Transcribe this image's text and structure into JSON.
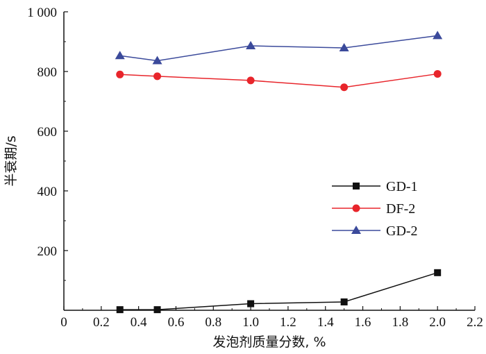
{
  "chart_data": {
    "type": "line",
    "title": "",
    "xlabel": "发泡剂质量分数, %",
    "ylabel": "半衰期/s",
    "xlim": [
      0,
      2.2
    ],
    "ylim": [
      0,
      1000
    ],
    "x_ticks": [
      "0",
      "0.2",
      "0.4",
      "0.6",
      "0.8",
      "1.0",
      "1.2",
      "1.4",
      "1.6",
      "1.8",
      "2.0",
      "2.2"
    ],
    "y_ticks": [
      "200",
      "400",
      "600",
      "800",
      "1 000"
    ],
    "y_tick_values": [
      200,
      400,
      600,
      800,
      1000
    ],
    "grid": false,
    "legend_position": "center-right",
    "series": [
      {
        "name": "GD-1",
        "color": "#111111",
        "marker": "square",
        "x": [
          0.3,
          0.5,
          1.0,
          1.5,
          2.0
        ],
        "y": [
          2,
          2,
          22,
          28,
          126
        ]
      },
      {
        "name": "DF-2",
        "color": "#e8252b",
        "marker": "circle",
        "x": [
          0.3,
          0.5,
          1.0,
          1.5,
          2.0
        ],
        "y": [
          790,
          784,
          770,
          747,
          792
        ]
      },
      {
        "name": "GD-2",
        "color": "#3b4a9b",
        "marker": "triangle",
        "x": [
          0.3,
          0.5,
          1.0,
          1.5,
          2.0
        ],
        "y": [
          853,
          836,
          886,
          879,
          920
        ]
      }
    ]
  }
}
